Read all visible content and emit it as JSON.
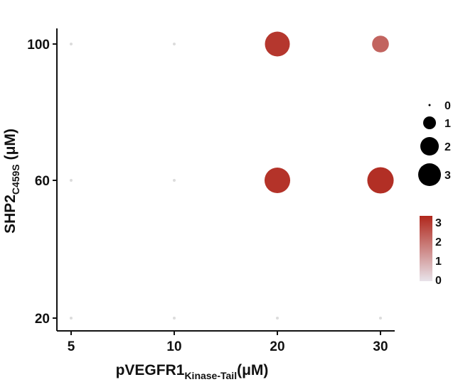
{
  "chart_data": {
    "type": "scatter",
    "x_ticks": [
      5,
      10,
      20,
      30
    ],
    "y_ticks": [
      20,
      60,
      100
    ],
    "xlabel": "pVEGFR1",
    "xlabel_sub": "Kinase-Tail",
    "xlabel_suffix": "(μM)",
    "ylabel": "SHP2",
    "ylabel_sub": "C459S",
    "ylabel_suffix": " (μM)",
    "points": [
      {
        "x": 5,
        "y": 100,
        "value": 0
      },
      {
        "x": 10,
        "y": 100,
        "value": 0
      },
      {
        "x": 20,
        "y": 100,
        "value": 2.6
      },
      {
        "x": 30,
        "y": 100,
        "value": 1.5
      },
      {
        "x": 5,
        "y": 60,
        "value": 0
      },
      {
        "x": 10,
        "y": 60,
        "value": 0
      },
      {
        "x": 20,
        "y": 60,
        "value": 2.7
      },
      {
        "x": 30,
        "y": 60,
        "value": 2.8
      },
      {
        "x": 5,
        "y": 20,
        "value": 0
      },
      {
        "x": 10,
        "y": 20,
        "value": 0
      },
      {
        "x": 20,
        "y": 20,
        "value": 0
      },
      {
        "x": 30,
        "y": 20,
        "value": 0
      }
    ],
    "size_legend": {
      "values": [
        0,
        1,
        2,
        3
      ],
      "labels": [
        "0",
        "1",
        "2",
        "3"
      ],
      "color": "#000000"
    },
    "color_legend": {
      "min": 0,
      "max": 3,
      "labels": [
        "3",
        "2",
        "1",
        "0"
      ],
      "low_color": "#e8e3ea",
      "high_color": "#b0271c"
    },
    "grid": false
  }
}
